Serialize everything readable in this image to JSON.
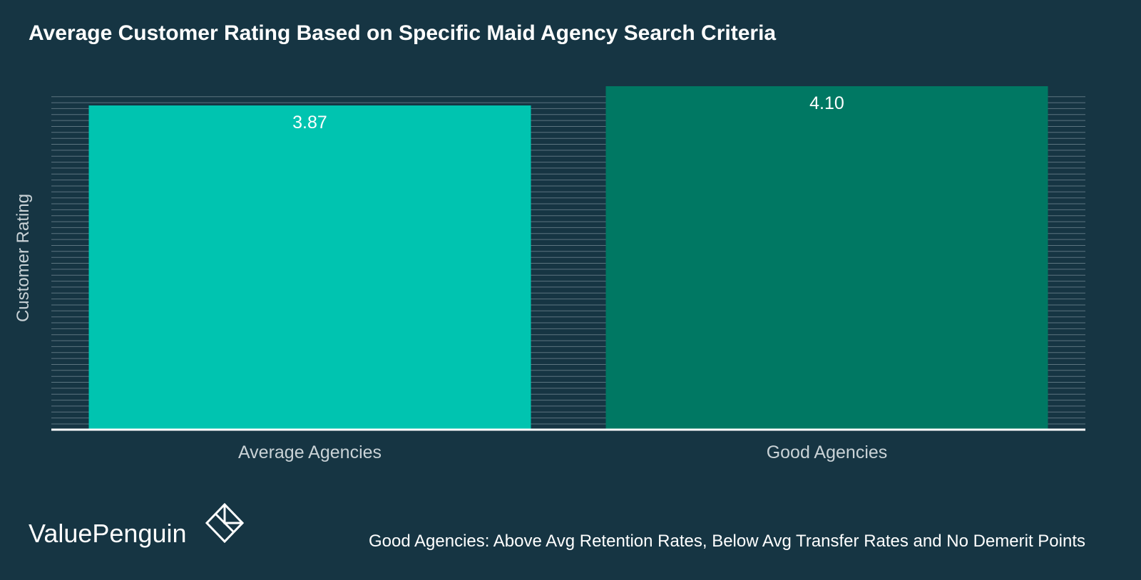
{
  "chart_data": {
    "type": "bar",
    "title": "Average Customer Rating Based on Specific Maid Agency Search Criteria",
    "ylabel": "Customer Rating",
    "xlabel": "",
    "categories": [
      "Average Agencies",
      "Good Agencies"
    ],
    "values": [
      3.87,
      4.1
    ],
    "value_labels": [
      "3.87",
      "4.10"
    ],
    "colors": [
      "#00c4b0",
      "#007863"
    ],
    "ylim": [
      0,
      4.1
    ],
    "grid": true,
    "legend": "none"
  },
  "branding": {
    "logo_text": "ValuePenguin",
    "logo_icon": "penguin-diamond-icon"
  },
  "footnote": "Good Agencies: Above Avg Retention Rates, Below Avg Transfer Rates and No Demerit Points",
  "colors": {
    "background": "#163543",
    "gridline": "#5c7580",
    "axis_text": "#c9d2d6"
  }
}
